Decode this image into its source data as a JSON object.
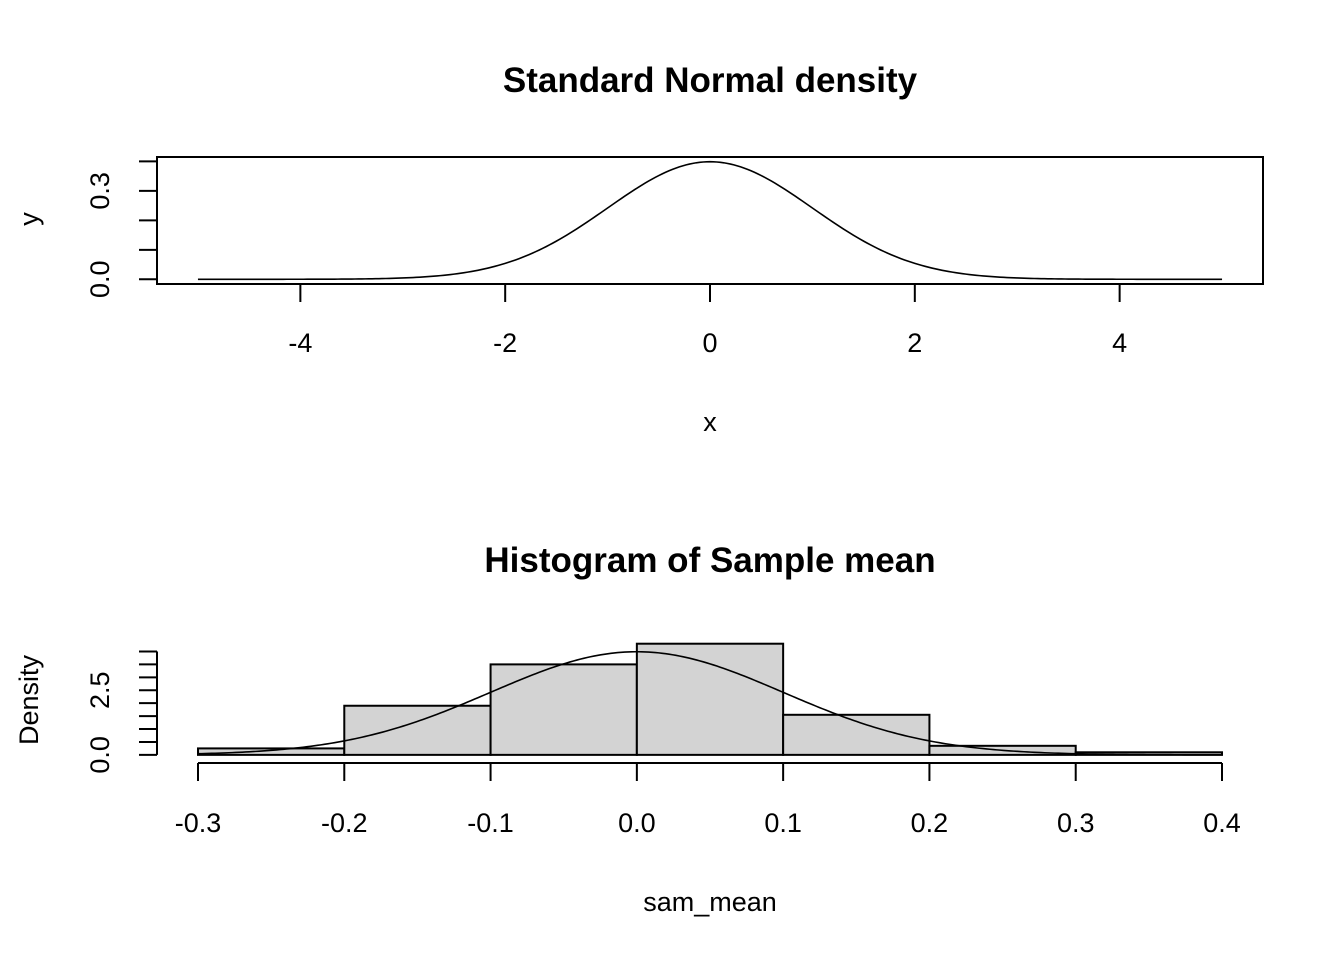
{
  "chart_data": [
    {
      "type": "line",
      "title": "Standard Normal density",
      "xlabel": "x",
      "ylabel": "y",
      "xlim": [
        -5.4,
        5.4
      ],
      "ylim": [
        -0.016,
        0.415
      ],
      "x_ticks": [
        "-4",
        "-2",
        "0",
        "2",
        "4"
      ],
      "x_tick_values": [
        -4,
        -2,
        0,
        2,
        4
      ],
      "y_ticks": [
        "0.0",
        "0.3"
      ],
      "y_tick_values": [
        0.0,
        0.1,
        0.2,
        0.3,
        0.4
      ],
      "y_tick_labeled": [
        true,
        false,
        false,
        true,
        false
      ],
      "curve": {
        "function": "dnorm",
        "mean": 0,
        "sd": 1,
        "x_range": [
          -5,
          5
        ]
      }
    },
    {
      "type": "bar",
      "title": "Histogram of Sample mean",
      "xlabel": "sam_mean",
      "ylabel": "Density",
      "xlim": [
        -0.3,
        0.4
      ],
      "ylim": [
        -0.16,
        4.25
      ],
      "x_ticks": [
        "-0.3",
        "-0.2",
        "-0.1",
        "0.0",
        "0.1",
        "0.2",
        "0.3",
        "0.4"
      ],
      "x_tick_values": [
        -0.3,
        -0.2,
        -0.1,
        0.0,
        0.1,
        0.2,
        0.3,
        0.4
      ],
      "y_ticks": [
        "0.0",
        "2.5"
      ],
      "y_tick_values": [
        0.0,
        0.5,
        1.0,
        1.5,
        2.0,
        2.5,
        3.0,
        3.5,
        4.0
      ],
      "y_tick_labeled": [
        true,
        false,
        false,
        false,
        false,
        true,
        false,
        false,
        false
      ],
      "bins": [
        {
          "from": -0.3,
          "to": -0.2,
          "density": 0.25
        },
        {
          "from": -0.2,
          "to": -0.1,
          "density": 1.9
        },
        {
          "from": -0.1,
          "to": 0.0,
          "density": 3.5
        },
        {
          "from": 0.0,
          "to": 0.1,
          "density": 4.3
        },
        {
          "from": 0.1,
          "to": 0.2,
          "density": 1.55
        },
        {
          "from": 0.2,
          "to": 0.3,
          "density": 0.35
        },
        {
          "from": 0.3,
          "to": 0.4,
          "density": 0.1
        }
      ],
      "curve": {
        "function": "dnorm",
        "mean": 0.0,
        "sd": 0.1,
        "x_range": [
          -0.3,
          0.4
        ]
      }
    }
  ]
}
